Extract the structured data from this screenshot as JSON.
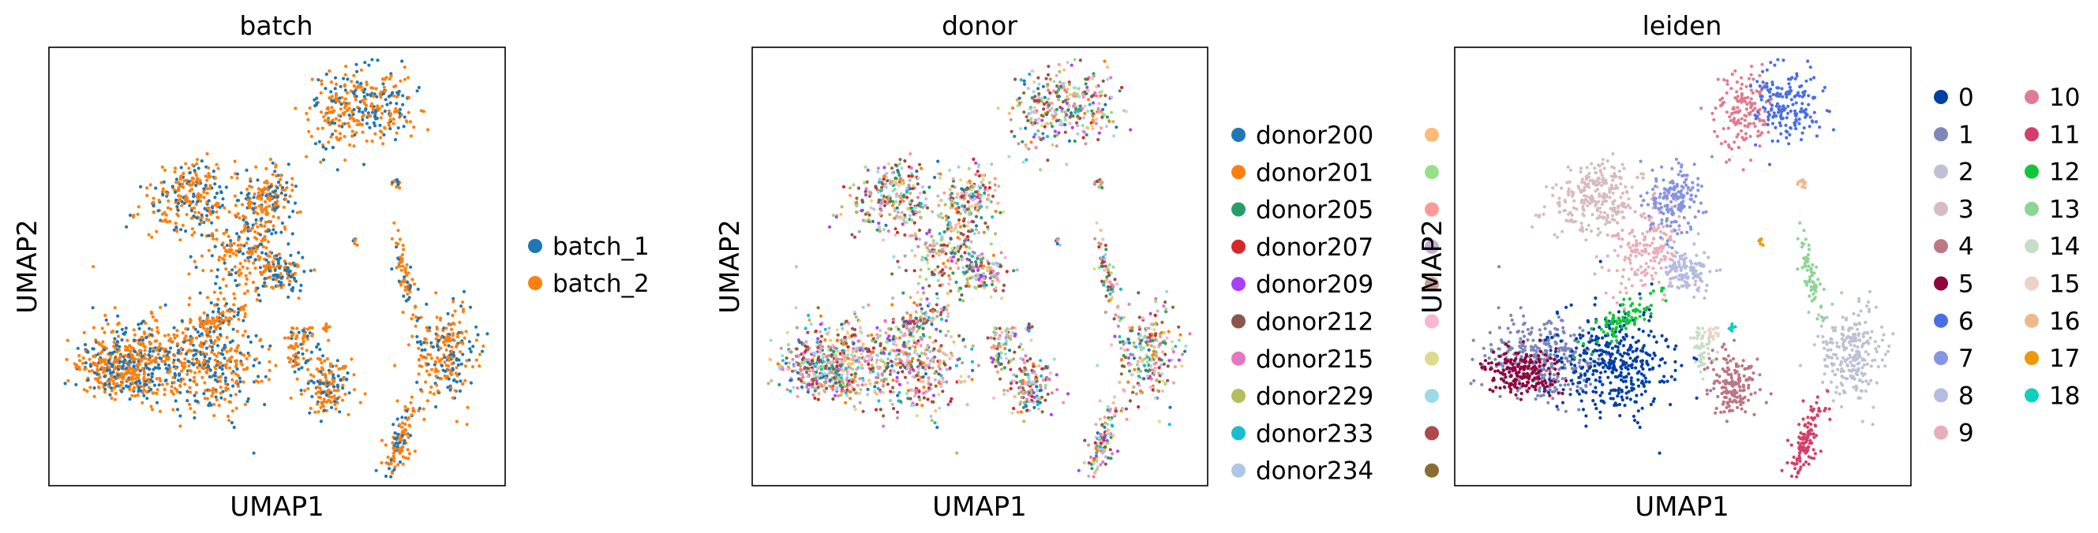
{
  "chart_data": [
    {
      "type": "scatter",
      "title": "batch",
      "xlabel": "UMAP1",
      "ylabel": "UMAP2",
      "grid": false,
      "ticks": "none",
      "legend_position": "right",
      "series": [
        {
          "name": "batch_1",
          "color": "#1f77b4"
        },
        {
          "name": "batch_2",
          "color": "#ff7f0e"
        }
      ]
    },
    {
      "type": "scatter",
      "title": "donor",
      "xlabel": "UMAP1",
      "ylabel": "UMAP2",
      "grid": false,
      "ticks": "none",
      "legend_position": "right",
      "series": [
        {
          "name": "donor200",
          "color": "#1f77b4"
        },
        {
          "name": "donor201",
          "color": "#ff7f0e"
        },
        {
          "name": "donor205",
          "color": "#279e68"
        },
        {
          "name": "donor207",
          "color": "#d62728"
        },
        {
          "name": "donor209",
          "color": "#aa40fc"
        },
        {
          "name": "donor212",
          "color": "#8c564b"
        },
        {
          "name": "donor215",
          "color": "#e377c2"
        },
        {
          "name": "donor229",
          "color": "#b5bd61"
        },
        {
          "name": "donor233",
          "color": "#17becf"
        },
        {
          "name": "donor234",
          "color": "#aec7e8"
        },
        {
          "color": "#ffbb78"
        },
        {
          "color": "#98df8a"
        },
        {
          "color": "#ff9896"
        },
        {
          "color": "#c5b0d5"
        },
        {
          "color": "#c49c94"
        },
        {
          "color": "#f7b6d2"
        },
        {
          "color": "#dbdb8d"
        },
        {
          "color": "#9edae5"
        },
        {
          "color": "#ad494a"
        },
        {
          "color": "#8c6d31"
        }
      ]
    },
    {
      "type": "scatter",
      "title": "leiden",
      "xlabel": "UMAP1",
      "ylabel": "UMAP2",
      "grid": false,
      "ticks": "none",
      "legend_position": "right",
      "series": [
        {
          "name": "0",
          "color": "#023fa5"
        },
        {
          "name": "1",
          "color": "#7d87b9"
        },
        {
          "name": "2",
          "color": "#bec1d4"
        },
        {
          "name": "3",
          "color": "#d6bcc0"
        },
        {
          "name": "4",
          "color": "#bb7784"
        },
        {
          "name": "5",
          "color": "#8e063b"
        },
        {
          "name": "6",
          "color": "#4a6fe3"
        },
        {
          "name": "7",
          "color": "#8595e1"
        },
        {
          "name": "8",
          "color": "#b5bbe3"
        },
        {
          "name": "9",
          "color": "#e6afb9"
        },
        {
          "name": "10",
          "color": "#e07b91"
        },
        {
          "name": "11",
          "color": "#d33f6a"
        },
        {
          "name": "12",
          "color": "#11c638"
        },
        {
          "name": "13",
          "color": "#8dd593"
        },
        {
          "name": "14",
          "color": "#c6dec7"
        },
        {
          "name": "15",
          "color": "#ead3c6"
        },
        {
          "name": "16",
          "color": "#f0b98d"
        },
        {
          "name": "17",
          "color": "#ef9708"
        },
        {
          "name": "18",
          "color": "#0fcfc0"
        }
      ]
    }
  ]
}
